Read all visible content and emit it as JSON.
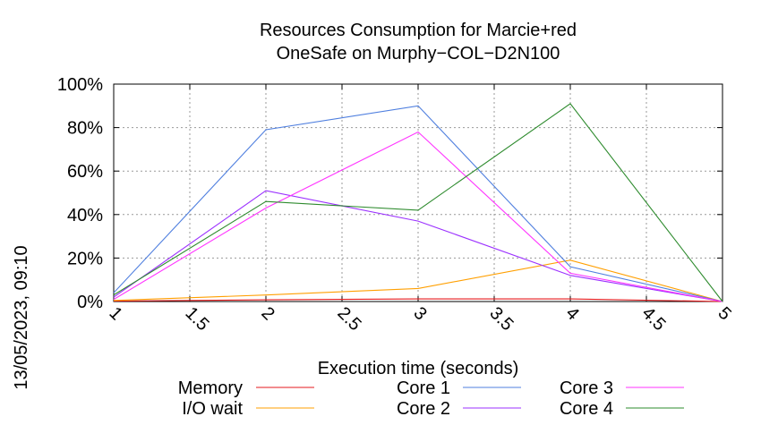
{
  "chart_data": {
    "type": "line",
    "title": [
      "Resources Consumption for Marcie+red",
      "OneSafe on Murphy−COL−D2N100"
    ],
    "xlabel": "Execution time (seconds)",
    "side_label": "13/05/2023, 09:10",
    "xlim": [
      1,
      5
    ],
    "ylim": [
      0,
      100
    ],
    "x_ticks": [
      "1",
      "1.5",
      "2",
      "2.5",
      "3",
      "3.5",
      "4",
      "4.5",
      "5"
    ],
    "y_ticks": [
      "0%",
      "20%",
      "40%",
      "60%",
      "80%",
      "100%"
    ],
    "grid": true,
    "legend_position": "bottom",
    "series": [
      {
        "name": "Memory",
        "color": "#e41a1c",
        "x": [
          1,
          2,
          3,
          4,
          5
        ],
        "y": [
          0.2,
          0.8,
          1.2,
          1.2,
          0
        ]
      },
      {
        "name": "I/O wait",
        "color": "#ff9f00",
        "x": [
          1,
          2,
          3,
          4,
          5
        ],
        "y": [
          0.5,
          3,
          6,
          19,
          0
        ]
      },
      {
        "name": "Core 1",
        "color": "#4f7fdf",
        "x": [
          1,
          2,
          3,
          4,
          5
        ],
        "y": [
          4,
          79,
          90,
          16,
          0
        ]
      },
      {
        "name": "Core 2",
        "color": "#9b30ff",
        "x": [
          1,
          2,
          3,
          4,
          5
        ],
        "y": [
          2,
          51,
          37,
          12,
          0
        ]
      },
      {
        "name": "Core 3",
        "color": "#ff33ff",
        "x": [
          1,
          2,
          3,
          4,
          5
        ],
        "y": [
          1,
          43,
          78,
          13,
          0
        ]
      },
      {
        "name": "Core 4",
        "color": "#2e8b2e",
        "x": [
          1,
          2,
          3,
          4,
          5
        ],
        "y": [
          3,
          46,
          42,
          91,
          0
        ]
      }
    ]
  }
}
